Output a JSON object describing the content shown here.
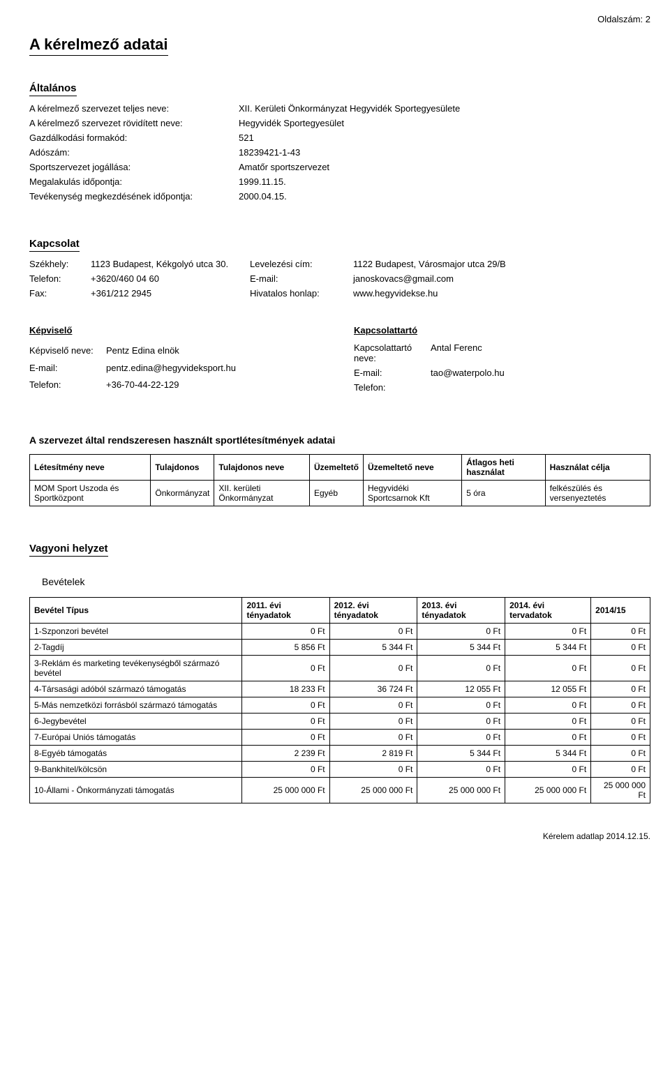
{
  "page_number_label": "Oldalszám: 2",
  "main_title": "A kérelmező adatai",
  "general": {
    "heading": "Általános",
    "rows": [
      {
        "label": "A kérelmező szervezet teljes neve:",
        "value": "XII. Kerületi Önkormányzat Hegyvidék Sportegyesülete"
      },
      {
        "label": "A kérelmező szervezet rövidített neve:",
        "value": "Hegyvidék Sportegyesület"
      },
      {
        "label": "Gazdálkodási formakód:",
        "value": "521"
      },
      {
        "label": "Adószám:",
        "value": "18239421-1-43"
      },
      {
        "label": "Sportszervezet jogállása:",
        "value": "Amatőr sportszervezet"
      },
      {
        "label": "Megalakulás időpontja:",
        "value": "1999.11.15."
      },
      {
        "label": "Tevékenység megkezdésének időpontja:",
        "value": "2000.04.15."
      }
    ]
  },
  "contact": {
    "heading": "Kapcsolat",
    "rows": [
      {
        "l1": "Székhely:",
        "v1": "1123 Budapest, Kékgolyó utca 30.",
        "l2": "Levelezési cím:",
        "v2": "1122 Budapest, Városmajor utca 29/B"
      },
      {
        "l1": "Telefon:",
        "v1": "+3620/460 04 60",
        "l2": "E-mail:",
        "v2": "janoskovacs@gmail.com"
      },
      {
        "l1": "Fax:",
        "v1": "+361/212 2945",
        "l2": "Hivatalos honlap:",
        "v2": "www.hegyvidekse.hu"
      }
    ]
  },
  "rep": {
    "left_heading": "Képviselő",
    "right_heading": "Kapcsolattartó",
    "left": [
      {
        "label": "Képviselő neve:",
        "value": "Pentz Edina elnök"
      },
      {
        "label": "E-mail:",
        "value": "pentz.edina@hegyvideksport.hu"
      },
      {
        "label": "Telefon:",
        "value": "+36-70-44-22-129"
      }
    ],
    "right": [
      {
        "label": "Kapcsolattartó neve:",
        "value": "Antal Ferenc"
      },
      {
        "label": "E-mail:",
        "value": "tao@waterpolo.hu"
      },
      {
        "label": "Telefon:",
        "value": ""
      }
    ]
  },
  "facilities": {
    "heading": "A szervezet által rendszeresen használt sportlétesítmények adatai",
    "columns": [
      "Létesítmény neve",
      "Tulajdonos",
      "Tulajdonos neve",
      "Üzemeltető",
      "Üzemeltető neve",
      "Átlagos heti használat",
      "Használat célja"
    ],
    "rows": [
      [
        "MOM Sport Uszoda és Sportközpont",
        "Önkormányzat",
        "XII. kerületi Önkormányzat",
        "Egyéb",
        "Hegyvidéki Sportcsarnok Kft",
        "5 óra",
        "felkészülés és versenyeztetés"
      ]
    ]
  },
  "finance": {
    "heading": "Vagyoni helyzet",
    "subheading": "Bevételek",
    "columns": [
      "Bevétel Típus",
      "2011. évi tényadatok",
      "2012. évi tényadatok",
      "2013. évi tényadatok",
      "2014. évi tervadatok",
      "2014/15"
    ],
    "rows": [
      [
        "1-Szponzori bevétel",
        "0 Ft",
        "0 Ft",
        "0 Ft",
        "0 Ft",
        "0 Ft"
      ],
      [
        "2-Tagdíj",
        "5 856 Ft",
        "5 344 Ft",
        "5 344 Ft",
        "5 344 Ft",
        "0 Ft"
      ],
      [
        "3-Reklám és marketing tevékenységből származó bevétel",
        "0 Ft",
        "0 Ft",
        "0 Ft",
        "0 Ft",
        "0 Ft"
      ],
      [
        "4-Társasági adóból származó támogatás",
        "18 233 Ft",
        "36 724 Ft",
        "12 055 Ft",
        "12 055 Ft",
        "0 Ft"
      ],
      [
        "5-Más nemzetközi forrásból származó támogatás",
        "0 Ft",
        "0 Ft",
        "0 Ft",
        "0 Ft",
        "0 Ft"
      ],
      [
        "6-Jegybevétel",
        "0 Ft",
        "0 Ft",
        "0 Ft",
        "0 Ft",
        "0 Ft"
      ],
      [
        "7-Európai Uniós támogatás",
        "0 Ft",
        "0 Ft",
        "0 Ft",
        "0 Ft",
        "0 Ft"
      ],
      [
        "8-Egyéb támogatás",
        "2 239 Ft",
        "2 819 Ft",
        "5 344 Ft",
        "5 344 Ft",
        "0 Ft"
      ],
      [
        "9-Bankhitel/kölcsön",
        "0 Ft",
        "0 Ft",
        "0 Ft",
        "0 Ft",
        "0 Ft"
      ],
      [
        "10-Állami - Önkormányzati támogatás",
        "25 000 000 Ft",
        "25 000 000 Ft",
        "25 000 000 Ft",
        "25 000 000 Ft",
        "25 000 000 Ft"
      ]
    ]
  },
  "footer": "Kérelem adatlap 2014.12.15."
}
